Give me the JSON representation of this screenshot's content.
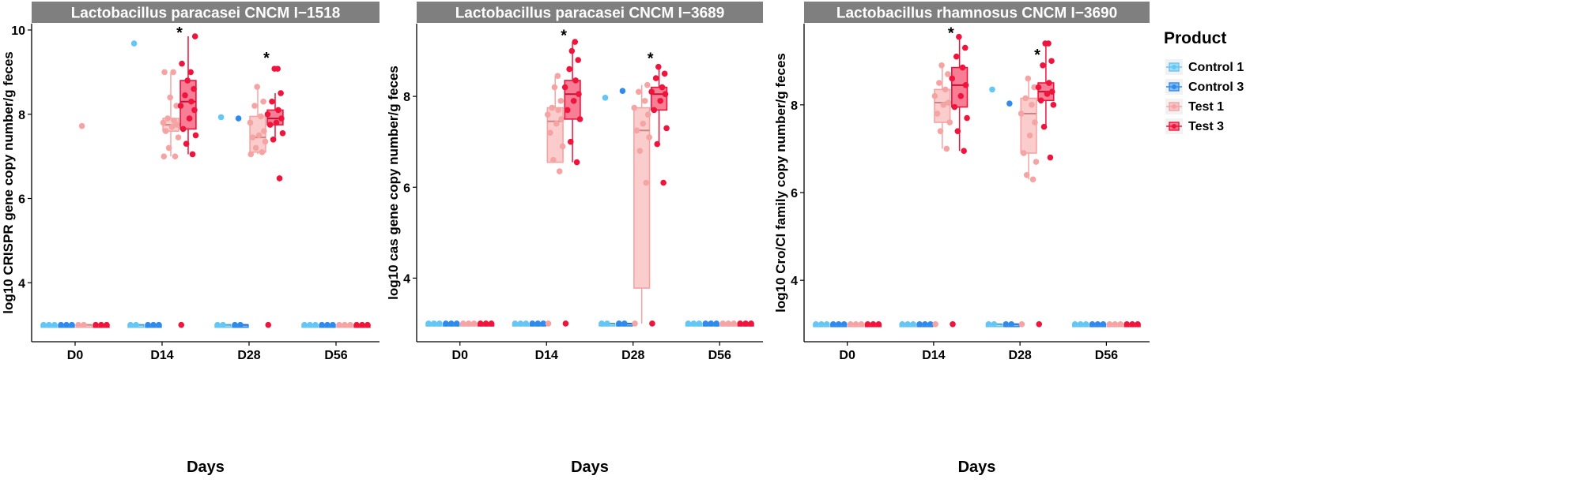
{
  "figure": {
    "x_title": "Days",
    "legend_title": "Product"
  },
  "colors": {
    "strip": "#7f7f7f",
    "strip_text": "#ffffff",
    "Control 1": "#63c6f5",
    "Control 3": "#2e8bed",
    "Test 1": "#f6a3a3",
    "Test 3": "#f0143c"
  },
  "chart_data": [
    {
      "type": "box",
      "title": "Lactobacillus paracasei CNCM I−1518",
      "xlabel": "Days",
      "ylabel": "log10 CRISPR gene copy number/g feces",
      "categories": [
        "D0",
        "D14",
        "D28",
        "D56"
      ],
      "ylim": [
        2.6,
        10.15
      ],
      "yticks": [
        4,
        6,
        8,
        10
      ],
      "series": [
        {
          "name": "Control 1",
          "boxes": [
            {
              "day": "D0",
              "q1": 3,
              "med": 3,
              "q3": 3,
              "wlo": 3,
              "whi": 3,
              "points": [
                3,
                3,
                3
              ]
            },
            {
              "day": "D14",
              "q1": 3,
              "med": 3,
              "q3": 3,
              "wlo": 3,
              "whi": 3,
              "points": [
                3,
                3,
                9.68
              ]
            },
            {
              "day": "D28",
              "q1": 3,
              "med": 3,
              "q3": 3,
              "wlo": 3,
              "whi": 3,
              "points": [
                3,
                3,
                7.93
              ]
            },
            {
              "day": "D56",
              "q1": 3,
              "med": 3,
              "q3": 3,
              "wlo": 3,
              "whi": 3,
              "points": [
                3,
                3,
                3
              ]
            }
          ]
        },
        {
          "name": "Control 3",
          "boxes": [
            {
              "day": "D0",
              "q1": 3,
              "med": 3,
              "q3": 3,
              "wlo": 3,
              "whi": 3,
              "points": [
                3,
                3,
                3
              ]
            },
            {
              "day": "D14",
              "q1": 3,
              "med": 3,
              "q3": 3,
              "wlo": 3,
              "whi": 3,
              "points": [
                3,
                3,
                3
              ]
            },
            {
              "day": "D28",
              "q1": 3,
              "med": 3,
              "q3": 3,
              "wlo": 3,
              "whi": 3,
              "points": [
                3,
                3,
                7.9
              ]
            },
            {
              "day": "D56",
              "q1": 3,
              "med": 3,
              "q3": 3,
              "wlo": 3,
              "whi": 3,
              "points": [
                3,
                3,
                3
              ]
            }
          ]
        },
        {
          "name": "Test 1",
          "boxes": [
            {
              "day": "D0",
              "q1": 3,
              "med": 3,
              "q3": 3,
              "wlo": 3,
              "whi": 3,
              "points": [
                3,
                3,
                7.72
              ]
            },
            {
              "day": "D14",
              "q1": 7.6,
              "med": 7.75,
              "q3": 7.9,
              "wlo": 7.0,
              "whi": 9.0,
              "points": [
                7.0,
                7.0,
                7.2,
                7.45,
                7.6,
                7.7,
                7.75,
                7.8,
                7.85,
                7.9,
                8.2,
                8.4,
                9.0,
                9.0
              ]
            },
            {
              "day": "D28",
              "q1": 7.1,
              "med": 7.45,
              "q3": 7.95,
              "wlo": 7.05,
              "whi": 8.65,
              "points": [
                7.05,
                7.1,
                7.2,
                7.35,
                7.45,
                7.5,
                7.6,
                7.8,
                7.95,
                8.2,
                8.3,
                8.65
              ]
            },
            {
              "day": "D56",
              "q1": 3,
              "med": 3,
              "q3": 3,
              "wlo": 3,
              "whi": 3,
              "points": [
                3,
                3,
                3
              ]
            }
          ]
        },
        {
          "name": "Test 3",
          "boxes": [
            {
              "day": "D0",
              "q1": 3,
              "med": 3,
              "q3": 3,
              "wlo": 3,
              "whi": 3,
              "points": [
                3,
                3,
                3
              ]
            },
            {
              "day": "D14",
              "q1": 7.65,
              "med": 8.3,
              "q3": 8.8,
              "wlo": 7.05,
              "whi": 9.85,
              "points": [
                3,
                7.05,
                7.3,
                7.5,
                7.65,
                7.9,
                8.1,
                8.2,
                8.3,
                8.45,
                8.6,
                8.8,
                9.0,
                9.2,
                9.85
              ]
            },
            {
              "day": "D28",
              "q1": 7.75,
              "med": 7.9,
              "q3": 8.1,
              "wlo": 7.4,
              "whi": 8.5,
              "points": [
                3,
                6.48,
                7.4,
                7.55,
                7.75,
                7.8,
                7.9,
                8.0,
                8.1,
                8.3,
                8.5,
                9.08,
                9.08
              ]
            },
            {
              "day": "D56",
              "q1": 3,
              "med": 3,
              "q3": 3,
              "wlo": 3,
              "whi": 3,
              "points": [
                3,
                3,
                3
              ]
            }
          ]
        }
      ],
      "annotations": [
        {
          "day": "D14",
          "y": 10.0,
          "text": "*"
        },
        {
          "day": "D28",
          "y": 9.4,
          "text": "*"
        }
      ]
    },
    {
      "type": "box",
      "title": "Lactobacillus paracasei CNCM I−3689",
      "xlabel": "Days",
      "ylabel": "log10 cas gene copy number/g feces",
      "categories": [
        "D0",
        "D14",
        "D28",
        "D56"
      ],
      "ylim": [
        2.6,
        9.6
      ],
      "yticks": [
        4,
        6,
        8
      ],
      "series": [
        {
          "name": "Control 1",
          "boxes": [
            {
              "day": "D0",
              "q1": 3,
              "med": 3,
              "q3": 3,
              "wlo": 3,
              "whi": 3,
              "points": [
                3,
                3,
                3
              ]
            },
            {
              "day": "D14",
              "q1": 3,
              "med": 3,
              "q3": 3,
              "wlo": 3,
              "whi": 3,
              "points": [
                3,
                3,
                3
              ]
            },
            {
              "day": "D28",
              "q1": 3,
              "med": 3,
              "q3": 3,
              "wlo": 3,
              "whi": 3,
              "points": [
                3,
                3,
                7.97
              ]
            },
            {
              "day": "D56",
              "q1": 3,
              "med": 3,
              "q3": 3,
              "wlo": 3,
              "whi": 3,
              "points": [
                3,
                3,
                3
              ]
            }
          ]
        },
        {
          "name": "Control 3",
          "boxes": [
            {
              "day": "D0",
              "q1": 3,
              "med": 3,
              "q3": 3,
              "wlo": 3,
              "whi": 3,
              "points": [
                3,
                3,
                3
              ]
            },
            {
              "day": "D14",
              "q1": 3,
              "med": 3,
              "q3": 3,
              "wlo": 3,
              "whi": 3,
              "points": [
                3,
                3,
                3
              ]
            },
            {
              "day": "D28",
              "q1": 3,
              "med": 3,
              "q3": 3,
              "wlo": 3,
              "whi": 3,
              "points": [
                3,
                3,
                8.12
              ]
            },
            {
              "day": "D56",
              "q1": 3,
              "med": 3,
              "q3": 3,
              "wlo": 3,
              "whi": 3,
              "points": [
                3,
                3,
                3
              ]
            }
          ]
        },
        {
          "name": "Test 1",
          "boxes": [
            {
              "day": "D0",
              "q1": 3,
              "med": 3,
              "q3": 3,
              "wlo": 3,
              "whi": 3,
              "points": [
                3,
                3,
                3
              ]
            },
            {
              "day": "D14",
              "q1": 6.55,
              "med": 7.45,
              "q3": 7.75,
              "wlo": 6.55,
              "whi": 8.45,
              "points": [
                3,
                6.35,
                6.6,
                6.9,
                7.2,
                7.4,
                7.5,
                7.6,
                7.7,
                7.75,
                7.9,
                8.2,
                8.45
              ]
            },
            {
              "day": "D28",
              "q1": 3.78,
              "med": 7.25,
              "q3": 7.75,
              "wlo": 3,
              "whi": 8.25,
              "points": [
                3,
                6.1,
                6.8,
                7.1,
                7.25,
                7.4,
                7.6,
                7.75,
                7.9,
                8.1,
                8.25
              ]
            },
            {
              "day": "D56",
              "q1": 3,
              "med": 3,
              "q3": 3,
              "wlo": 3,
              "whi": 3,
              "points": [
                3,
                3,
                3
              ]
            }
          ]
        },
        {
          "name": "Test 3",
          "boxes": [
            {
              "day": "D0",
              "q1": 3,
              "med": 3,
              "q3": 3,
              "wlo": 3,
              "whi": 3,
              "points": [
                3,
                3,
                3
              ]
            },
            {
              "day": "D14",
              "q1": 7.5,
              "med": 8.05,
              "q3": 8.35,
              "wlo": 6.55,
              "whi": 9.2,
              "points": [
                3,
                6.55,
                7.0,
                7.5,
                7.7,
                7.9,
                8.05,
                8.2,
                8.35,
                8.6,
                8.8,
                9.0,
                9.2
              ]
            },
            {
              "day": "D28",
              "q1": 7.7,
              "med": 8.05,
              "q3": 8.2,
              "wlo": 6.95,
              "whi": 8.65,
              "points": [
                3,
                6.1,
                6.95,
                7.3,
                7.7,
                7.9,
                8.05,
                8.1,
                8.2,
                8.4,
                8.5,
                8.65
              ]
            },
            {
              "day": "D56",
              "q1": 3,
              "med": 3,
              "q3": 3,
              "wlo": 3,
              "whi": 3,
              "points": [
                3,
                3,
                3
              ]
            }
          ]
        }
      ],
      "annotations": [
        {
          "day": "D14",
          "y": 9.4,
          "text": "*"
        },
        {
          "day": "D28",
          "y": 8.9,
          "text": "*"
        }
      ]
    },
    {
      "type": "box",
      "title": "Lactobacillus rhamnosus CNCM I−3690",
      "xlabel": "Days",
      "ylabel": "log10 Cro/CI family copy number/g feces",
      "categories": [
        "D0",
        "D14",
        "D28",
        "D56"
      ],
      "ylim": [
        2.6,
        9.85
      ],
      "yticks": [
        4,
        6,
        8
      ],
      "series": [
        {
          "name": "Control 1",
          "boxes": [
            {
              "day": "D0",
              "q1": 3,
              "med": 3,
              "q3": 3,
              "wlo": 3,
              "whi": 3,
              "points": [
                3,
                3,
                3
              ]
            },
            {
              "day": "D14",
              "q1": 3,
              "med": 3,
              "q3": 3,
              "wlo": 3,
              "whi": 3,
              "points": [
                3,
                3,
                3
              ]
            },
            {
              "day": "D28",
              "q1": 3,
              "med": 3,
              "q3": 3,
              "wlo": 3,
              "whi": 3,
              "points": [
                3,
                3,
                8.35
              ]
            },
            {
              "day": "D56",
              "q1": 3,
              "med": 3,
              "q3": 3,
              "wlo": 3,
              "whi": 3,
              "points": [
                3,
                3,
                3
              ]
            }
          ]
        },
        {
          "name": "Control 3",
          "boxes": [
            {
              "day": "D0",
              "q1": 3,
              "med": 3,
              "q3": 3,
              "wlo": 3,
              "whi": 3,
              "points": [
                3,
                3,
                3
              ]
            },
            {
              "day": "D14",
              "q1": 3,
              "med": 3,
              "q3": 3,
              "wlo": 3,
              "whi": 3,
              "points": [
                3,
                3,
                3
              ]
            },
            {
              "day": "D28",
              "q1": 3,
              "med": 3,
              "q3": 3,
              "wlo": 3,
              "whi": 3,
              "points": [
                3,
                3,
                8.03
              ]
            },
            {
              "day": "D56",
              "q1": 3,
              "med": 3,
              "q3": 3,
              "wlo": 3,
              "whi": 3,
              "points": [
                3,
                3,
                3
              ]
            }
          ]
        },
        {
          "name": "Test 1",
          "boxes": [
            {
              "day": "D0",
              "q1": 3,
              "med": 3,
              "q3": 3,
              "wlo": 3,
              "whi": 3,
              "points": [
                3,
                3,
                3
              ]
            },
            {
              "day": "D14",
              "q1": 7.6,
              "med": 8.05,
              "q3": 8.35,
              "wlo": 7.0,
              "whi": 8.9,
              "points": [
                3,
                7.0,
                7.4,
                7.6,
                7.8,
                8.0,
                8.05,
                8.2,
                8.35,
                8.5,
                8.7,
                8.9
              ]
            },
            {
              "day": "D28",
              "q1": 6.9,
              "med": 7.8,
              "q3": 8.15,
              "wlo": 6.3,
              "whi": 8.6,
              "points": [
                3,
                6.3,
                6.4,
                6.7,
                6.9,
                7.3,
                7.6,
                7.8,
                8.0,
                8.15,
                8.4,
                8.6
              ]
            },
            {
              "day": "D56",
              "q1": 3,
              "med": 3,
              "q3": 3,
              "wlo": 3,
              "whi": 3,
              "points": [
                3,
                3,
                3
              ]
            }
          ]
        },
        {
          "name": "Test 3",
          "boxes": [
            {
              "day": "D0",
              "q1": 3,
              "med": 3,
              "q3": 3,
              "wlo": 3,
              "whi": 3,
              "points": [
                3,
                3,
                3
              ]
            },
            {
              "day": "D14",
              "q1": 7.95,
              "med": 8.45,
              "q3": 8.85,
              "wlo": 6.95,
              "whi": 9.55,
              "points": [
                3,
                6.95,
                7.4,
                7.7,
                7.95,
                8.2,
                8.45,
                8.6,
                8.85,
                9.1,
                9.3,
                9.55
              ]
            },
            {
              "day": "D28",
              "q1": 8.1,
              "med": 8.3,
              "q3": 8.5,
              "wlo": 7.5,
              "whi": 9.4,
              "points": [
                3,
                6.8,
                7.5,
                8.0,
                8.1,
                8.25,
                8.3,
                8.4,
                8.5,
                8.9,
                9.0,
                9.4,
                9.4
              ]
            },
            {
              "day": "D56",
              "q1": 3,
              "med": 3,
              "q3": 3,
              "wlo": 3,
              "whi": 3,
              "points": [
                3,
                3,
                3
              ]
            }
          ]
        }
      ],
      "annotations": [
        {
          "day": "D14",
          "y": 9.7,
          "text": "*"
        },
        {
          "day": "D28",
          "y": 9.2,
          "text": "*"
        }
      ]
    }
  ],
  "legend": {
    "title": "Product",
    "items": [
      "Control 1",
      "Control 3",
      "Test 1",
      "Test 3"
    ]
  }
}
